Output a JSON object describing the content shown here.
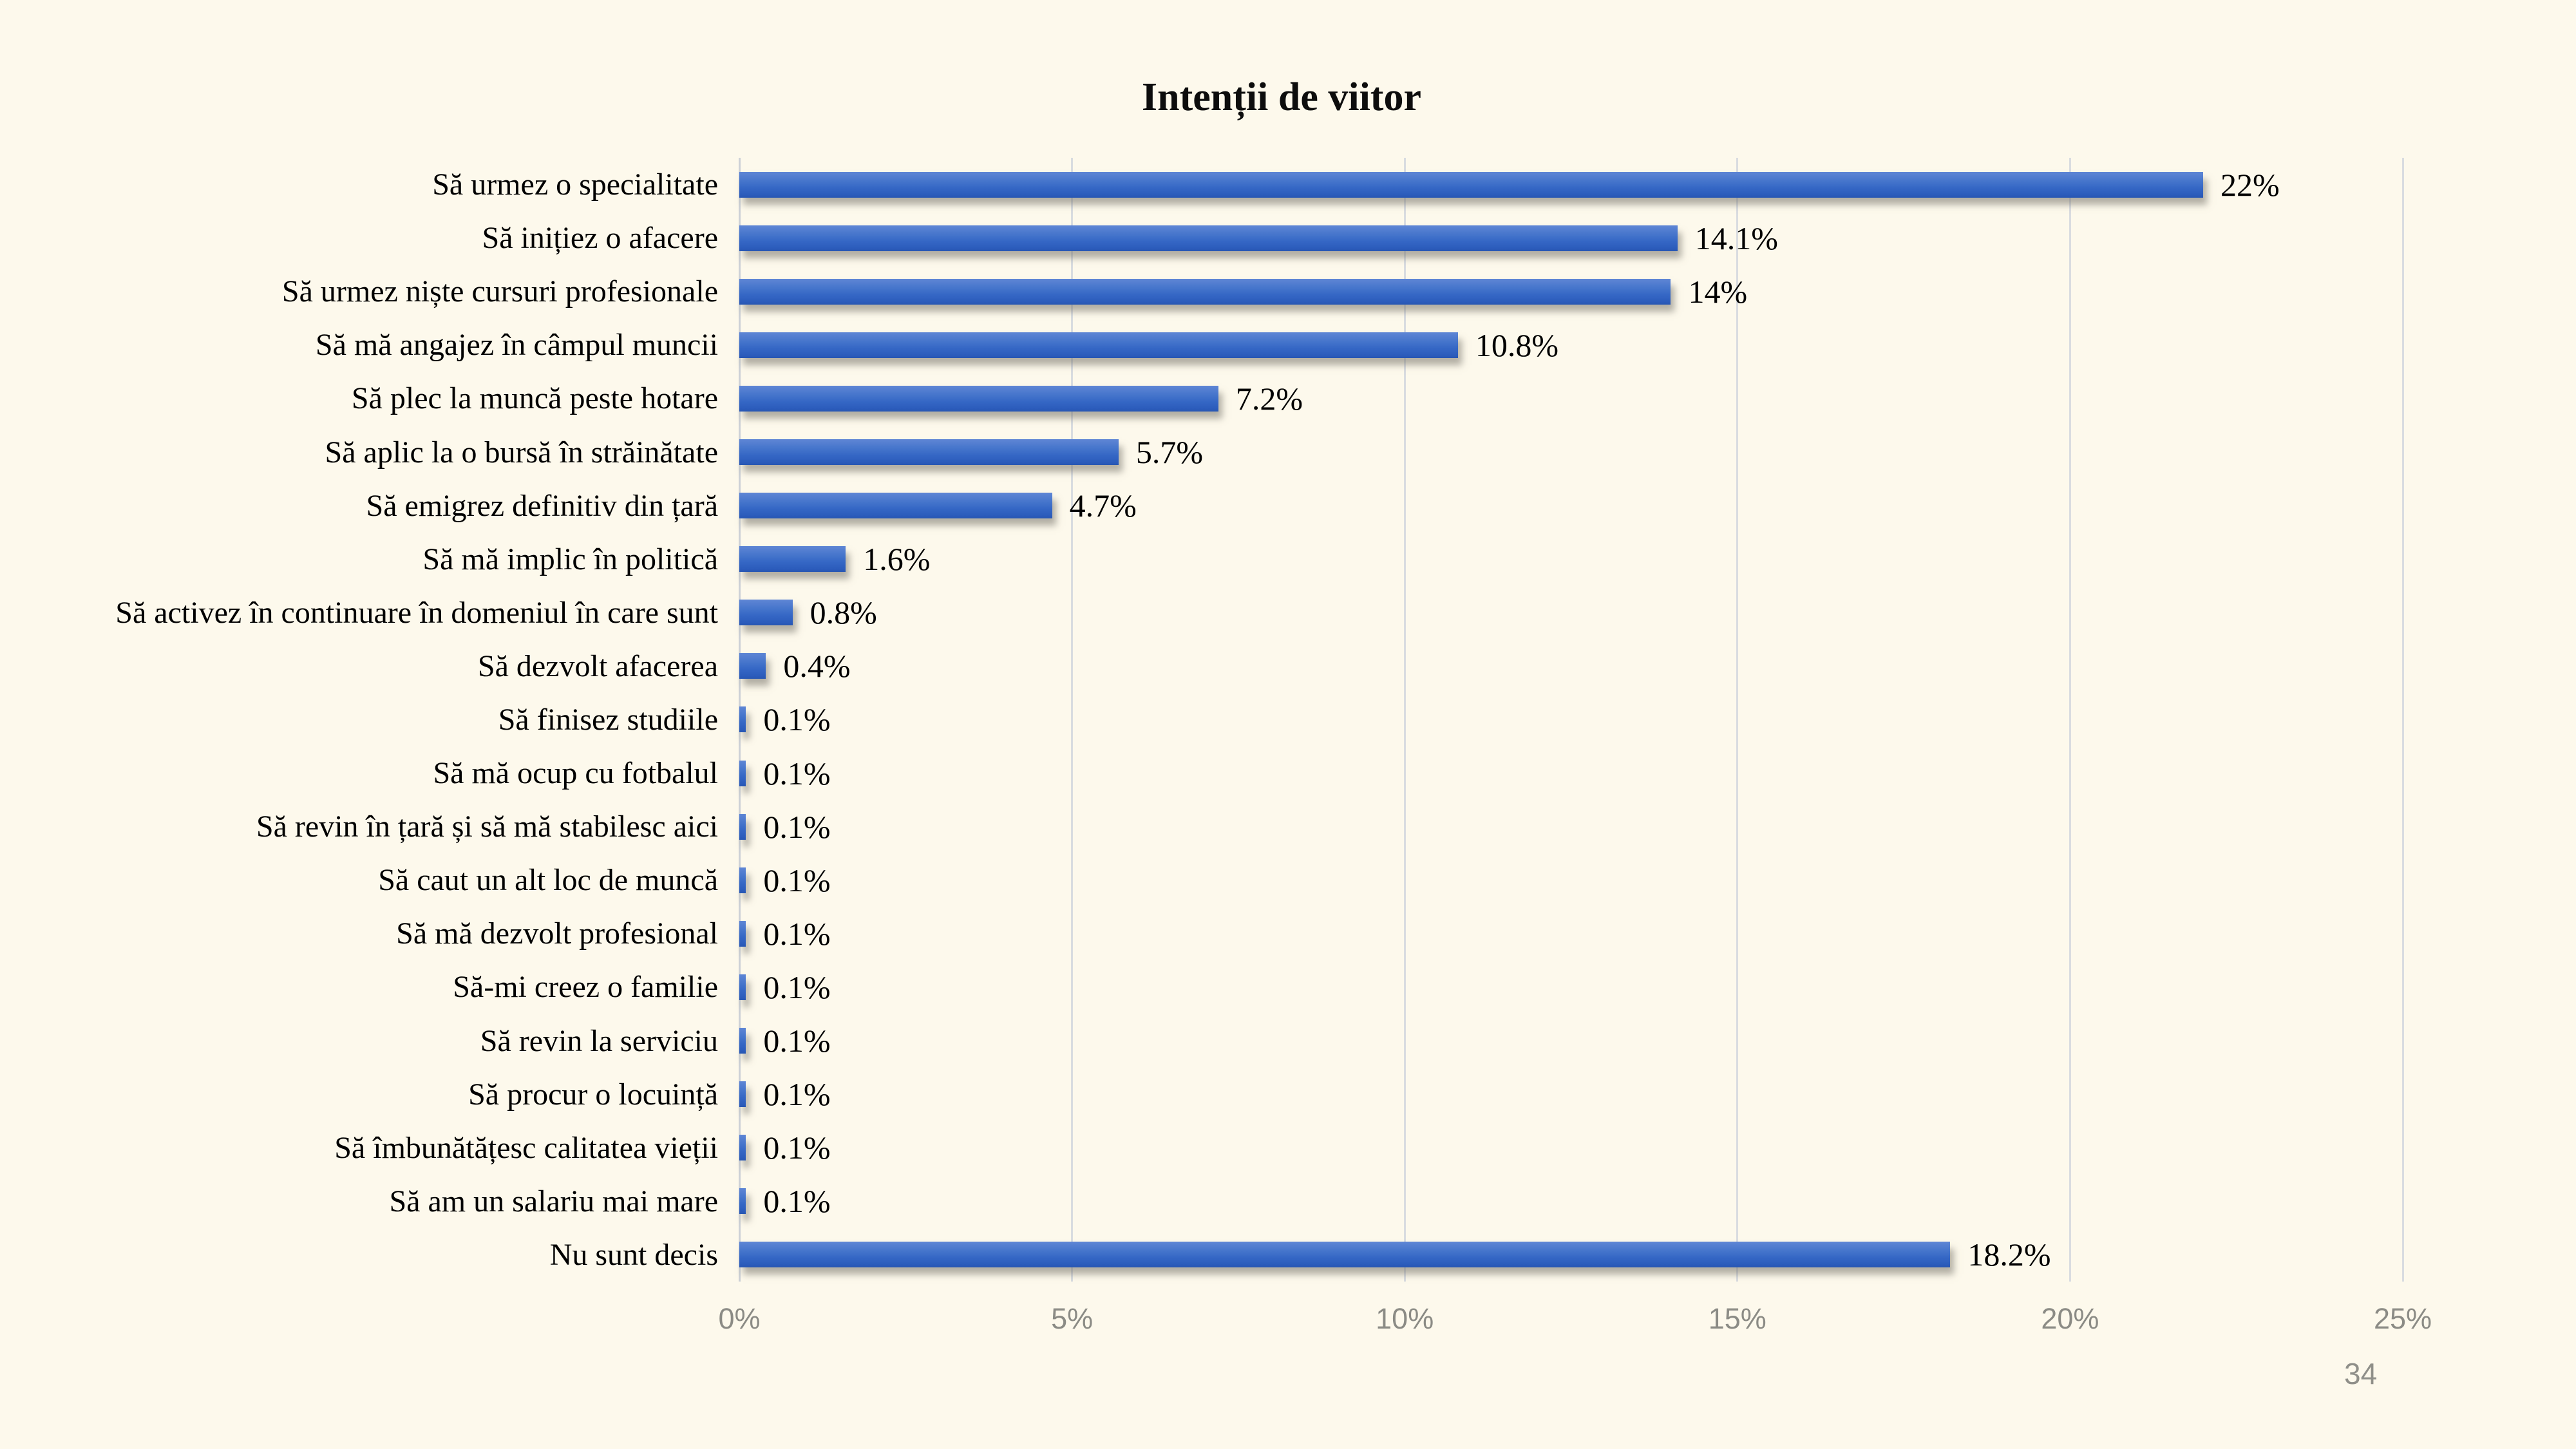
{
  "page": {
    "number": "34",
    "background_color": "#FDF9EC"
  },
  "chart_data": {
    "type": "bar",
    "orientation": "horizontal",
    "title": "Intenții de viitor",
    "categories": [
      "Să urmez o specialitate",
      "Să inițiez o afacere",
      "Să urmez niște cursuri profesionale",
      "Să mă angajez în câmpul muncii",
      "Să plec la muncă peste hotare",
      "Să aplic la o bursă în străinătate",
      "Să emigrez definitiv din țară",
      "Să mă implic în politică",
      "Să activez în continuare în domeniul în care sunt",
      "Să dezvolt afacerea",
      "Să finisez studiile",
      "Să mă ocup cu fotbalul",
      "Să revin în țară și să mă stabilesc aici",
      "Să caut un alt loc de muncă",
      "Să mă dezvolt profesional",
      "Să-mi creez o familie",
      "Să revin la serviciu",
      "Să procur o locuință",
      "Să îmbunătățesc calitatea vieții",
      "Să am un salariu mai mare",
      "Nu sunt decis"
    ],
    "values": [
      22,
      14.1,
      14,
      10.8,
      7.2,
      5.7,
      4.7,
      1.6,
      0.8,
      0.4,
      0.1,
      0.1,
      0.1,
      0.1,
      0.1,
      0.1,
      0.1,
      0.1,
      0.1,
      0.1,
      18.2
    ],
    "value_labels": [
      "22%",
      "14.1%",
      "14%",
      "10.8%",
      "7.2%",
      "5.7%",
      "4.7%",
      "1.6%",
      "0.8%",
      "0.4%",
      "0.1%",
      "0.1%",
      "0.1%",
      "0.1%",
      "0.1%",
      "0.1%",
      "0.1%",
      "0.1%",
      "0.1%",
      "0.1%",
      "18.2%"
    ],
    "x_ticks": [
      "0%",
      "5%",
      "10%",
      "15%",
      "20%",
      "25%"
    ],
    "xlim": [
      0,
      25
    ],
    "grid": "vertical-only",
    "legend": "none",
    "bar_gradient_top": "#5F86D5",
    "bar_gradient_bottom": "#2756B2",
    "gridline_color": "#D9DCE0",
    "data_label_color": "#000000",
    "tick_label_color": "#8B8B85"
  }
}
